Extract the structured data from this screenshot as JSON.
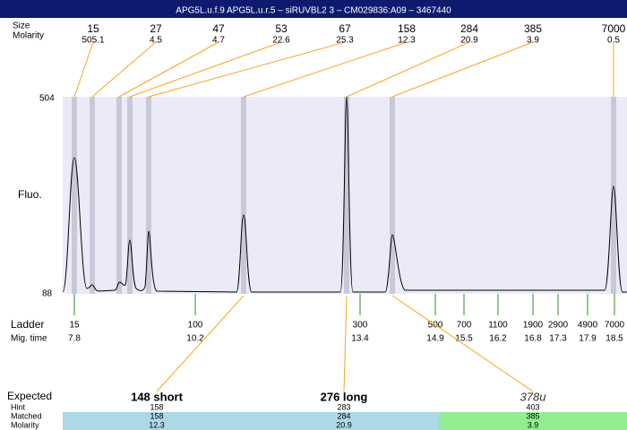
{
  "header": {
    "title": "APG5L.u.f.9  APG5L.u.r.5 – siRUVBL2 3 – CM029836:A09 – 3467440"
  },
  "peaks": {
    "size_label": "Size",
    "molarity_label": "Molarity",
    "items": [
      {
        "size": 15,
        "molarity": 505.1
      },
      {
        "size": 27,
        "molarity": 4.5
      },
      {
        "size": 47,
        "molarity": 4.7
      },
      {
        "size": 53,
        "molarity": 22.6
      },
      {
        "size": 67,
        "molarity": 25.3
      },
      {
        "size": 158,
        "molarity": 12.3
      },
      {
        "size": 284,
        "molarity": 20.9
      },
      {
        "size": 385,
        "molarity": 3.9
      },
      {
        "size": 7000,
        "molarity": 0.5
      }
    ]
  },
  "axis": {
    "label": "Fluo.",
    "top": 504,
    "bottom": 88
  },
  "ladder": {
    "label": "Ladder",
    "time_label": "Mig. time",
    "items": [
      {
        "size": 15,
        "time": 7.8
      },
      {
        "size": 100,
        "time": 10.2
      },
      {
        "size": 300,
        "time": 13.4
      },
      {
        "size": 500,
        "time": 14.9
      },
      {
        "size": 700,
        "time": 15.5
      },
      {
        "size": 1100,
        "time": 16.2
      },
      {
        "size": 1900,
        "time": 16.8
      },
      {
        "size": 2900,
        "time": 17.3
      },
      {
        "size": 4900,
        "time": 17.9
      },
      {
        "size": 7000,
        "time": 18.5
      }
    ]
  },
  "expected": {
    "label": "Expected",
    "hint_label": "Hint",
    "matched_label": "Matched",
    "molarity_label": "Molarity",
    "items": [
      {
        "name": "148 short",
        "hint": 158,
        "matched": 158,
        "molarity": 12.3
      },
      {
        "name": "276 long",
        "hint": 283,
        "matched": 284,
        "molarity": 20.9
      },
      {
        "name": "378u",
        "hint": 403,
        "matched": 385,
        "molarity": 3.9
      }
    ]
  }
}
